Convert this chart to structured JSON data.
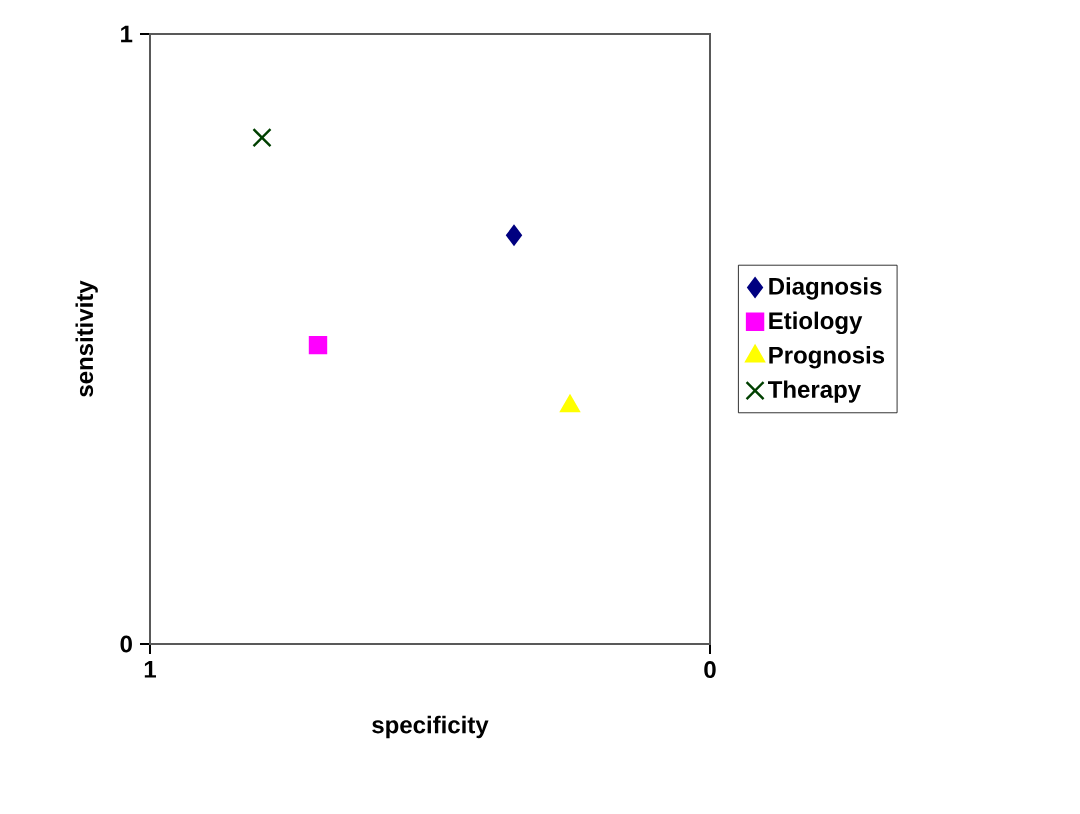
{
  "chart_data": {
    "type": "scatter",
    "xlabel": "specificity",
    "ylabel": "sensitivity",
    "xlim": [
      1,
      0
    ],
    "ylim": [
      0,
      1
    ],
    "xticks": [
      1,
      0
    ],
    "yticks": [
      0,
      1
    ],
    "legend": "right",
    "series": [
      {
        "name": "Diagnosis",
        "color": "#000080",
        "marker": "diamond",
        "x": [
          0.35
        ],
        "values": [
          0.67
        ]
      },
      {
        "name": "Etiology",
        "color": "#ff00ff",
        "marker": "square",
        "x": [
          0.7
        ],
        "values": [
          0.49
        ]
      },
      {
        "name": "Prognosis",
        "color": "#ffff00",
        "marker": "triangle",
        "x": [
          0.25
        ],
        "values": [
          0.39
        ]
      },
      {
        "name": "Therapy",
        "color": "#004000",
        "marker": "cross",
        "x": [
          0.8
        ],
        "values": [
          0.83
        ]
      }
    ]
  }
}
